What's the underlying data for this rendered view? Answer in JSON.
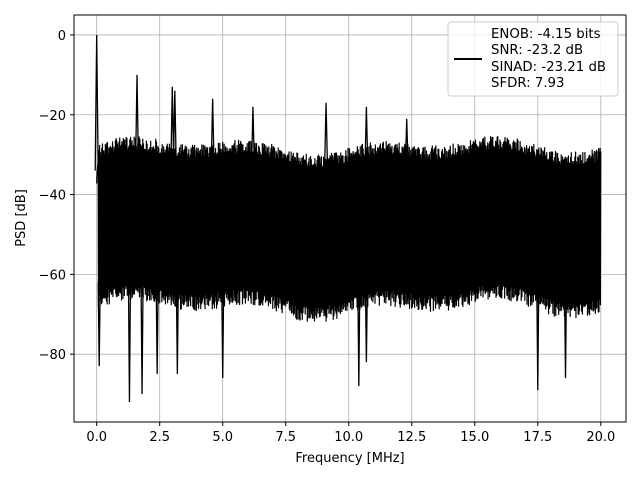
{
  "chart_data": {
    "type": "line",
    "title": "",
    "xlabel": "Frequency [MHz]",
    "ylabel": "PSD [dB]",
    "xlim": [
      -0.9,
      21.0
    ],
    "ylim": [
      -97,
      5
    ],
    "xticks": [
      0.0,
      2.5,
      5.0,
      7.5,
      10.0,
      12.5,
      15.0,
      17.5,
      20.0
    ],
    "xtick_labels": [
      "0.0",
      "2.5",
      "5.0",
      "7.5",
      "10.0",
      "12.5",
      "15.0",
      "17.5",
      "20.0"
    ],
    "yticks": [
      0,
      -20,
      -40,
      -60,
      -80
    ],
    "ytick_labels": [
      "0",
      "−20",
      "−40",
      "−60",
      "−80"
    ],
    "grid": true,
    "legend_position": "top-right",
    "series": [
      {
        "name": "",
        "color": "#000000",
        "x_range": [
          0.0,
          20.0
        ],
        "noise_band": {
          "upper_db": [
            -30,
            -25
          ],
          "lower_db": [
            -72,
            -66
          ]
        },
        "peaks": [
          {
            "x": 0.0,
            "y": 0
          },
          {
            "x": 1.6,
            "y": -10
          },
          {
            "x": 3.0,
            "y": -13
          },
          {
            "x": 3.1,
            "y": -14
          },
          {
            "x": 4.6,
            "y": -16
          },
          {
            "x": 6.2,
            "y": -18
          },
          {
            "x": 9.1,
            "y": -17
          },
          {
            "x": 10.7,
            "y": -18
          },
          {
            "x": 12.3,
            "y": -21
          }
        ],
        "dips": [
          {
            "x": 0.1,
            "y": -83
          },
          {
            "x": 1.3,
            "y": -92
          },
          {
            "x": 1.8,
            "y": -90
          },
          {
            "x": 2.4,
            "y": -85
          },
          {
            "x": 3.2,
            "y": -85
          },
          {
            "x": 5.0,
            "y": -86
          },
          {
            "x": 10.4,
            "y": -88
          },
          {
            "x": 10.7,
            "y": -82
          },
          {
            "x": 17.5,
            "y": -89
          },
          {
            "x": 18.6,
            "y": -86
          }
        ]
      }
    ],
    "legend_lines": [
      "ENOB: -4.15 bits",
      "SNR: -23.2 dB",
      "SINAD: -23.21 dB",
      "SFDR: 7.93"
    ]
  }
}
